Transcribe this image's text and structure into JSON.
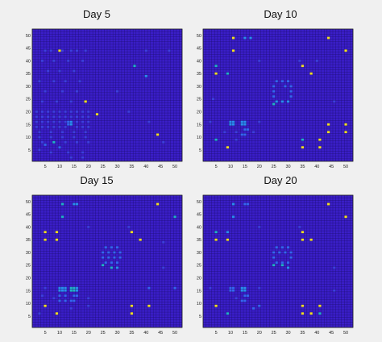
{
  "colors": {
    "background": "#3a1ec8",
    "grid": "#1c0f6e",
    "frame": "#222222",
    "page": "#f0f0f0",
    "scale": [
      "#3a1ec8",
      "#3d3fe0",
      "#3566f2",
      "#2a8ef0",
      "#21b3c8",
      "#3fcf98",
      "#9ed85a",
      "#f4e025"
    ]
  },
  "chart_data": [
    {
      "type": "heatmap",
      "title": "Day 5",
      "grid_size": 52,
      "x_ticks": [
        5,
        10,
        15,
        20,
        25,
        30,
        35,
        40,
        45,
        50
      ],
      "y_ticks": [
        5,
        10,
        15,
        20,
        25,
        30,
        35,
        40,
        45,
        50
      ],
      "cells": [
        [
          10,
          44,
          1.0
        ],
        [
          36,
          38,
          0.55
        ],
        [
          40,
          34,
          0.45
        ],
        [
          19,
          24,
          1.0
        ],
        [
          23,
          19,
          1.0
        ],
        [
          44,
          11,
          1.0
        ],
        [
          8,
          8,
          0.5
        ],
        [
          5,
          7,
          0.3
        ],
        [
          10,
          6,
          0.35
        ],
        [
          13,
          16,
          0.35
        ],
        [
          14,
          16,
          0.4
        ],
        [
          13,
          15,
          0.35
        ],
        [
          14,
          15,
          0.4
        ],
        [
          5,
          44,
          0.15
        ],
        [
          7,
          44,
          0.15
        ],
        [
          11,
          44,
          0.2
        ],
        [
          14,
          44,
          0.15
        ],
        [
          16,
          44,
          0.15
        ],
        [
          19,
          44,
          0.15
        ],
        [
          4,
          40,
          0.12
        ],
        [
          8,
          40,
          0.12
        ],
        [
          13,
          40,
          0.12
        ],
        [
          18,
          40,
          0.12
        ],
        [
          6,
          36,
          0.12
        ],
        [
          10,
          36,
          0.12
        ],
        [
          15,
          36,
          0.12
        ],
        [
          3,
          32,
          0.12
        ],
        [
          8,
          32,
          0.12
        ],
        [
          12,
          32,
          0.12
        ],
        [
          17,
          32,
          0.12
        ],
        [
          5,
          28,
          0.12
        ],
        [
          11,
          28,
          0.12
        ],
        [
          16,
          28,
          0.12
        ],
        [
          4,
          24,
          0.12
        ],
        [
          9,
          24,
          0.12
        ],
        [
          14,
          24,
          0.12
        ],
        [
          2,
          20,
          0.18
        ],
        [
          4,
          20,
          0.18
        ],
        [
          6,
          20,
          0.18
        ],
        [
          8,
          20,
          0.18
        ],
        [
          10,
          20,
          0.18
        ],
        [
          12,
          20,
          0.18
        ],
        [
          14,
          20,
          0.18
        ],
        [
          16,
          20,
          0.18
        ],
        [
          18,
          20,
          0.18
        ],
        [
          20,
          20,
          0.18
        ],
        [
          2,
          18,
          0.2
        ],
        [
          4,
          18,
          0.2
        ],
        [
          6,
          18,
          0.2
        ],
        [
          8,
          18,
          0.2
        ],
        [
          10,
          18,
          0.2
        ],
        [
          12,
          18,
          0.2
        ],
        [
          14,
          18,
          0.2
        ],
        [
          16,
          18,
          0.2
        ],
        [
          18,
          18,
          0.2
        ],
        [
          20,
          18,
          0.2
        ],
        [
          2,
          16,
          0.2
        ],
        [
          4,
          16,
          0.2
        ],
        [
          6,
          16,
          0.2
        ],
        [
          8,
          16,
          0.2
        ],
        [
          10,
          16,
          0.2
        ],
        [
          12,
          16,
          0.2
        ],
        [
          16,
          16,
          0.2
        ],
        [
          18,
          16,
          0.2
        ],
        [
          20,
          16,
          0.2
        ],
        [
          2,
          14,
          0.18
        ],
        [
          4,
          14,
          0.18
        ],
        [
          6,
          14,
          0.18
        ],
        [
          8,
          14,
          0.18
        ],
        [
          10,
          14,
          0.18
        ],
        [
          12,
          14,
          0.18
        ],
        [
          16,
          14,
          0.18
        ],
        [
          18,
          14,
          0.18
        ],
        [
          20,
          14,
          0.18
        ],
        [
          3,
          12,
          0.15
        ],
        [
          7,
          12,
          0.15
        ],
        [
          11,
          12,
          0.15
        ],
        [
          15,
          12,
          0.15
        ],
        [
          19,
          12,
          0.15
        ],
        [
          3,
          10,
          0.15
        ],
        [
          7,
          10,
          0.15
        ],
        [
          11,
          10,
          0.15
        ],
        [
          15,
          10,
          0.15
        ],
        [
          19,
          10,
          0.15
        ],
        [
          4,
          8,
          0.15
        ],
        [
          12,
          8,
          0.15
        ],
        [
          16,
          8,
          0.15
        ],
        [
          20,
          8,
          0.15
        ],
        [
          3,
          5,
          0.12
        ],
        [
          7,
          4,
          0.12
        ],
        [
          13,
          4,
          0.12
        ],
        [
          18,
          4,
          0.12
        ],
        [
          14,
          2,
          0.12
        ],
        [
          18,
          2,
          0.12
        ],
        [
          30,
          28,
          0.12
        ],
        [
          34,
          20,
          0.12
        ],
        [
          41,
          16,
          0.12
        ],
        [
          46,
          8,
          0.12
        ],
        [
          40,
          44,
          0.12
        ],
        [
          48,
          44,
          0.12
        ]
      ]
    },
    {
      "type": "heatmap",
      "title": "Day 10",
      "grid_size": 52,
      "x_ticks": [
        5,
        10,
        15,
        20,
        25,
        30,
        35,
        40,
        45,
        50
      ],
      "y_ticks": [
        5,
        10,
        15,
        20,
        25,
        30,
        35,
        40,
        45,
        50
      ],
      "cells": [
        [
          11,
          49,
          1.0
        ],
        [
          15,
          49,
          0.45
        ],
        [
          17,
          49,
          0.45
        ],
        [
          44,
          49,
          1.0
        ],
        [
          11,
          44,
          1.0
        ],
        [
          50,
          44,
          1.0
        ],
        [
          5,
          38,
          0.55
        ],
        [
          35,
          38,
          1.0
        ],
        [
          5,
          35,
          1.0
        ],
        [
          9,
          35,
          0.6
        ],
        [
          38,
          35,
          1.0
        ],
        [
          26,
          32,
          0.35
        ],
        [
          28,
          32,
          0.35
        ],
        [
          30,
          32,
          0.35
        ],
        [
          25,
          30,
          0.35
        ],
        [
          29,
          30,
          0.35
        ],
        [
          31,
          30,
          0.35
        ],
        [
          25,
          28,
          0.35
        ],
        [
          31,
          28,
          0.35
        ],
        [
          25,
          26,
          0.35
        ],
        [
          31,
          26,
          0.35
        ],
        [
          26,
          24,
          0.4
        ],
        [
          28,
          24,
          0.4
        ],
        [
          30,
          24,
          0.4
        ],
        [
          25,
          23,
          0.55
        ],
        [
          10,
          16,
          0.4
        ],
        [
          11,
          16,
          0.4
        ],
        [
          14,
          16,
          0.4
        ],
        [
          15,
          16,
          0.4
        ],
        [
          10,
          15,
          0.4
        ],
        [
          11,
          15,
          0.4
        ],
        [
          14,
          15,
          0.4
        ],
        [
          15,
          15,
          0.4
        ],
        [
          15,
          13,
          0.35
        ],
        [
          16,
          13,
          0.35
        ],
        [
          14,
          11,
          0.35
        ],
        [
          15,
          11,
          0.35
        ],
        [
          44,
          15,
          1.0
        ],
        [
          50,
          15,
          1.0
        ],
        [
          44,
          12,
          1.0
        ],
        [
          50,
          12,
          1.0
        ],
        [
          5,
          9,
          0.55
        ],
        [
          35,
          9,
          0.55
        ],
        [
          41,
          9,
          1.0
        ],
        [
          9,
          6,
          1.0
        ],
        [
          35,
          6,
          1.0
        ],
        [
          41,
          6,
          1.0
        ],
        [
          8,
          12,
          0.15
        ],
        [
          12,
          12,
          0.15
        ],
        [
          18,
          12,
          0.15
        ],
        [
          12,
          9,
          0.15
        ],
        [
          20,
          16,
          0.12
        ],
        [
          3,
          16,
          0.12
        ],
        [
          34,
          40,
          0.12
        ],
        [
          40,
          40,
          0.12
        ],
        [
          20,
          40,
          0.12
        ],
        [
          46,
          24,
          0.12
        ],
        [
          4,
          25,
          0.12
        ]
      ]
    },
    {
      "type": "heatmap",
      "title": "Day 15",
      "grid_size": 52,
      "x_ticks": [
        5,
        10,
        15,
        20,
        25,
        30,
        35,
        40,
        45,
        50
      ],
      "y_ticks": [
        5,
        10,
        15,
        20,
        25,
        30,
        35,
        40,
        45,
        50
      ],
      "cells": [
        [
          11,
          49,
          0.55
        ],
        [
          15,
          49,
          0.4
        ],
        [
          16,
          49,
          0.4
        ],
        [
          44,
          49,
          1.0
        ],
        [
          11,
          44,
          0.55
        ],
        [
          50,
          44,
          0.55
        ],
        [
          5,
          38,
          1.0
        ],
        [
          9,
          38,
          1.0
        ],
        [
          35,
          38,
          1.0
        ],
        [
          5,
          35,
          1.0
        ],
        [
          9,
          35,
          1.0
        ],
        [
          38,
          35,
          1.0
        ],
        [
          26,
          32,
          0.35
        ],
        [
          28,
          32,
          0.35
        ],
        [
          30,
          32,
          0.35
        ],
        [
          25,
          30,
          0.35
        ],
        [
          27,
          30,
          0.35
        ],
        [
          29,
          30,
          0.35
        ],
        [
          31,
          30,
          0.35
        ],
        [
          25,
          28,
          0.35
        ],
        [
          27,
          28,
          0.35
        ],
        [
          29,
          28,
          0.35
        ],
        [
          31,
          28,
          0.35
        ],
        [
          26,
          26,
          0.35
        ],
        [
          28,
          26,
          0.35
        ],
        [
          30,
          26,
          0.35
        ],
        [
          25,
          25,
          0.55
        ],
        [
          28,
          24,
          0.55
        ],
        [
          30,
          24,
          0.45
        ],
        [
          10,
          16,
          0.4
        ],
        [
          11,
          16,
          0.4
        ],
        [
          12,
          16,
          0.4
        ],
        [
          14,
          16,
          0.5
        ],
        [
          15,
          16,
          0.5
        ],
        [
          16,
          16,
          0.4
        ],
        [
          10,
          15,
          0.4
        ],
        [
          11,
          15,
          0.4
        ],
        [
          12,
          15,
          0.4
        ],
        [
          14,
          15,
          0.5
        ],
        [
          15,
          15,
          0.5
        ],
        [
          16,
          15,
          0.4
        ],
        [
          10,
          13,
          0.35
        ],
        [
          12,
          13,
          0.35
        ],
        [
          15,
          13,
          0.35
        ],
        [
          16,
          13,
          0.35
        ],
        [
          10,
          11,
          0.35
        ],
        [
          12,
          11,
          0.35
        ],
        [
          14,
          11,
          0.35
        ],
        [
          15,
          11,
          0.35
        ],
        [
          5,
          16,
          0.2
        ],
        [
          41,
          16,
          0.25
        ],
        [
          50,
          16,
          0.25
        ],
        [
          5,
          9,
          1.0
        ],
        [
          35,
          9,
          1.0
        ],
        [
          41,
          9,
          1.0
        ],
        [
          9,
          6,
          1.0
        ],
        [
          35,
          6,
          1.0
        ],
        [
          4,
          13,
          0.15
        ],
        [
          8,
          12,
          0.15
        ],
        [
          20,
          12,
          0.15
        ],
        [
          20,
          9,
          0.15
        ],
        [
          3,
          6,
          0.15
        ],
        [
          14,
          8,
          0.15
        ],
        [
          34,
          40,
          0.12
        ],
        [
          20,
          40,
          0.12
        ],
        [
          46,
          24,
          0.12
        ],
        [
          46,
          34,
          0.12
        ]
      ]
    },
    {
      "type": "heatmap",
      "title": "Day 20",
      "grid_size": 52,
      "x_ticks": [
        5,
        10,
        15,
        20,
        25,
        30,
        35,
        40,
        45,
        50
      ],
      "y_ticks": [
        5,
        10,
        15,
        20,
        25,
        30,
        35,
        40,
        45,
        50
      ],
      "cells": [
        [
          11,
          49,
          0.45
        ],
        [
          15,
          49,
          0.3
        ],
        [
          16,
          49,
          0.3
        ],
        [
          44,
          49,
          1.0
        ],
        [
          11,
          44,
          0.4
        ],
        [
          50,
          44,
          1.0
        ],
        [
          5,
          38,
          0.55
        ],
        [
          9,
          38,
          0.45
        ],
        [
          35,
          38,
          1.0
        ],
        [
          5,
          35,
          1.0
        ],
        [
          9,
          35,
          1.0
        ],
        [
          35,
          35,
          1.0
        ],
        [
          38,
          35,
          1.0
        ],
        [
          26,
          32,
          0.35
        ],
        [
          28,
          32,
          0.35
        ],
        [
          30,
          32,
          0.35
        ],
        [
          25,
          30,
          0.35
        ],
        [
          27,
          30,
          0.35
        ],
        [
          29,
          30,
          0.35
        ],
        [
          31,
          30,
          0.35
        ],
        [
          25,
          28,
          0.35
        ],
        [
          31,
          28,
          0.35
        ],
        [
          26,
          26,
          0.35
        ],
        [
          28,
          26,
          0.35
        ],
        [
          30,
          26,
          0.35
        ],
        [
          25,
          25,
          0.55
        ],
        [
          28,
          25,
          0.55
        ],
        [
          30,
          24,
          0.45
        ],
        [
          10,
          16,
          0.35
        ],
        [
          11,
          16,
          0.35
        ],
        [
          14,
          16,
          0.4
        ],
        [
          15,
          16,
          0.4
        ],
        [
          10,
          15,
          0.35
        ],
        [
          11,
          15,
          0.35
        ],
        [
          14,
          15,
          0.4
        ],
        [
          15,
          15,
          0.4
        ],
        [
          15,
          13,
          0.35
        ],
        [
          16,
          13,
          0.35
        ],
        [
          14,
          11,
          0.35
        ],
        [
          15,
          11,
          0.35
        ],
        [
          5,
          9,
          1.0
        ],
        [
          35,
          9,
          1.0
        ],
        [
          41,
          9,
          1.0
        ],
        [
          9,
          6,
          0.5
        ],
        [
          35,
          6,
          1.0
        ],
        [
          38,
          6,
          1.0
        ],
        [
          41,
          6,
          0.5
        ],
        [
          18,
          8,
          0.3
        ],
        [
          20,
          9,
          0.3
        ],
        [
          12,
          12,
          0.15
        ],
        [
          3,
          16,
          0.12
        ],
        [
          20,
          16,
          0.12
        ],
        [
          34,
          40,
          0.12
        ],
        [
          20,
          40,
          0.12
        ],
        [
          46,
          24,
          0.12
        ],
        [
          46,
          15,
          0.12
        ]
      ]
    }
  ]
}
